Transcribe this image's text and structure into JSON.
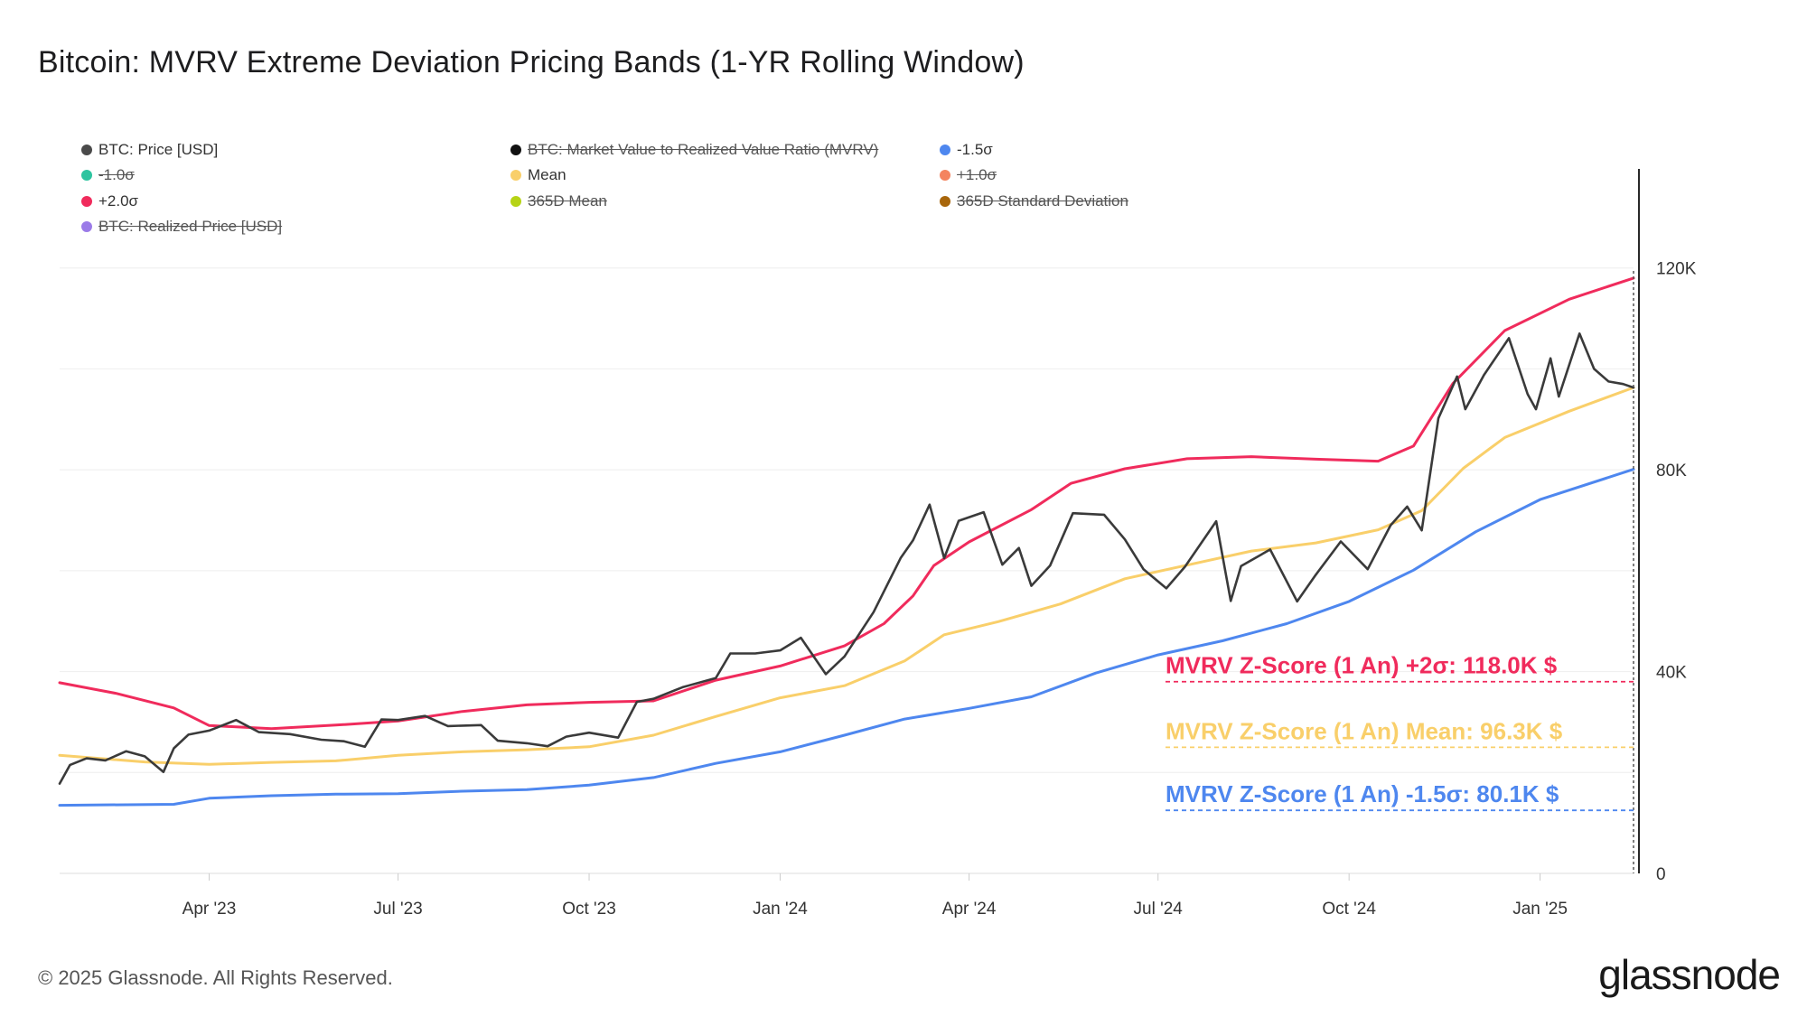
{
  "title": "Bitcoin: MVRV Extreme Deviation Pricing Bands (1-YR Rolling Window)",
  "legend": [
    {
      "label": "BTC: Price [USD]",
      "color": "#4a4a4a",
      "hidden": false
    },
    {
      "label": "BTC: Market Value to Realized Value Ratio (MVRV)",
      "color": "#111111",
      "hidden": true
    },
    {
      "label": "-1.5σ",
      "color": "#4e87ef",
      "hidden": false
    },
    {
      "label": "-1.0σ",
      "color": "#2ec4a0",
      "hidden": true
    },
    {
      "label": "Mean",
      "color": "#f9cf6a",
      "hidden": false
    },
    {
      "label": "+1.0σ",
      "color": "#f4845f",
      "hidden": true
    },
    {
      "label": "+2.0σ",
      "color": "#f02b5c",
      "hidden": false
    },
    {
      "label": "365D Mean",
      "color": "#b6d316",
      "hidden": true
    },
    {
      "label": "365D Standard Deviation",
      "color": "#a8660b",
      "hidden": true
    },
    {
      "label": "BTC: Realized Price [USD]",
      "color": "#9b7be8",
      "hidden": true
    }
  ],
  "annotations": [
    {
      "text": "MVRV Z-Score (1 An) +2σ: 118.0K $",
      "color": "#f02b5c",
      "value": 38000
    },
    {
      "text": "MVRV Z-Score (1 An)  Mean: 96.3K $",
      "color": "#f9cf6a",
      "value": 25000
    },
    {
      "text": "MVRV Z-Score (1 An)  -1.5σ: 80.1K $",
      "color": "#4e87ef",
      "value": 12500
    }
  ],
  "footer": "© 2025 Glassnode. All Rights Reserved.",
  "logo": "glassnode",
  "chart_data": {
    "type": "line",
    "title": "Bitcoin: MVRV Extreme Deviation Pricing Bands (1-YR Rolling Window)",
    "xlabel": "",
    "ylabel": "",
    "xlim": [
      "2023-01-19",
      "2025-02-15"
    ],
    "ylim": [
      0,
      140000
    ],
    "yticks": [
      0,
      40000,
      80000,
      120000
    ],
    "ytick_labels": [
      "0",
      "40K",
      "80K",
      "120K"
    ],
    "xticks": [
      "2023-04-01",
      "2023-07-01",
      "2023-10-01",
      "2024-01-01",
      "2024-04-01",
      "2024-07-01",
      "2024-10-01",
      "2025-01-01"
    ],
    "xtick_labels": [
      "Apr '23",
      "Jul '23",
      "Oct '23",
      "Jan '24",
      "Apr '24",
      "Jul '24",
      "Oct '24",
      "Jan '25"
    ],
    "y_axis_position": "right",
    "grid": "horizontal",
    "legend_position": "top-left",
    "series": [
      {
        "name": "BTC: Price [USD]",
        "color": "#3a3a3a",
        "points": [
          [
            "2023-01-19",
            17800
          ],
          [
            "2023-01-24",
            21500
          ],
          [
            "2023-02-01",
            22800
          ],
          [
            "2023-02-10",
            22400
          ],
          [
            "2023-02-20",
            24200
          ],
          [
            "2023-03-01",
            23200
          ],
          [
            "2023-03-10",
            20100
          ],
          [
            "2023-03-15",
            24800
          ],
          [
            "2023-03-22",
            27500
          ],
          [
            "2023-04-01",
            28300
          ],
          [
            "2023-04-14",
            30400
          ],
          [
            "2023-04-25",
            28000
          ],
          [
            "2023-05-10",
            27600
          ],
          [
            "2023-05-25",
            26500
          ],
          [
            "2023-06-05",
            26200
          ],
          [
            "2023-06-15",
            25100
          ],
          [
            "2023-06-23",
            30500
          ],
          [
            "2023-07-01",
            30400
          ],
          [
            "2023-07-14",
            31200
          ],
          [
            "2023-07-25",
            29200
          ],
          [
            "2023-08-10",
            29400
          ],
          [
            "2023-08-18",
            26300
          ],
          [
            "2023-09-01",
            25800
          ],
          [
            "2023-09-11",
            25200
          ],
          [
            "2023-09-20",
            27100
          ],
          [
            "2023-10-01",
            27900
          ],
          [
            "2023-10-15",
            26900
          ],
          [
            "2023-10-24",
            34000
          ],
          [
            "2023-11-01",
            34600
          ],
          [
            "2023-11-15",
            36900
          ],
          [
            "2023-12-01",
            38700
          ],
          [
            "2023-12-08",
            43600
          ],
          [
            "2023-12-20",
            43600
          ],
          [
            "2024-01-01",
            44200
          ],
          [
            "2024-01-11",
            46700
          ],
          [
            "2024-01-23",
            39500
          ],
          [
            "2024-02-01",
            43000
          ],
          [
            "2024-02-15",
            51800
          ],
          [
            "2024-02-28",
            62500
          ],
          [
            "2024-03-05",
            66000
          ],
          [
            "2024-03-13",
            73100
          ],
          [
            "2024-03-20",
            62500
          ],
          [
            "2024-03-27",
            69900
          ],
          [
            "2024-04-08",
            71600
          ],
          [
            "2024-04-17",
            61200
          ],
          [
            "2024-04-25",
            64500
          ],
          [
            "2024-05-01",
            57000
          ],
          [
            "2024-05-10",
            61000
          ],
          [
            "2024-05-21",
            71400
          ],
          [
            "2024-06-05",
            71100
          ],
          [
            "2024-06-15",
            66200
          ],
          [
            "2024-06-24",
            60300
          ],
          [
            "2024-07-05",
            56500
          ],
          [
            "2024-07-14",
            60800
          ],
          [
            "2024-07-29",
            69800
          ],
          [
            "2024-08-05",
            54000
          ],
          [
            "2024-08-10",
            60900
          ],
          [
            "2024-08-24",
            64200
          ],
          [
            "2024-09-06",
            53900
          ],
          [
            "2024-09-15",
            59200
          ],
          [
            "2024-09-27",
            65800
          ],
          [
            "2024-10-10",
            60300
          ],
          [
            "2024-10-21",
            69000
          ],
          [
            "2024-10-29",
            72700
          ],
          [
            "2024-11-05",
            68000
          ],
          [
            "2024-11-13",
            90200
          ],
          [
            "2024-11-22",
            98500
          ],
          [
            "2024-11-26",
            92000
          ],
          [
            "2024-12-05",
            98800
          ],
          [
            "2024-12-17",
            106100
          ],
          [
            "2024-12-26",
            95000
          ],
          [
            "2024-12-30",
            92000
          ],
          [
            "2025-01-06",
            102100
          ],
          [
            "2025-01-10",
            94500
          ],
          [
            "2025-01-20",
            107000
          ],
          [
            "2025-01-27",
            100000
          ],
          [
            "2025-02-03",
            97500
          ],
          [
            "2025-02-10",
            97000
          ],
          [
            "2025-02-15",
            96300
          ]
        ]
      },
      {
        "name": "+2.0σ",
        "color": "#f02b5c",
        "points": [
          [
            "2023-01-19",
            37800
          ],
          [
            "2023-02-15",
            35700
          ],
          [
            "2023-03-15",
            32800
          ],
          [
            "2023-04-01",
            29300
          ],
          [
            "2023-05-01",
            28700
          ],
          [
            "2023-06-01",
            29400
          ],
          [
            "2023-07-01",
            30200
          ],
          [
            "2023-08-01",
            32100
          ],
          [
            "2023-09-01",
            33400
          ],
          [
            "2023-10-01",
            33900
          ],
          [
            "2023-11-01",
            34200
          ],
          [
            "2023-12-01",
            38300
          ],
          [
            "2024-01-01",
            41100
          ],
          [
            "2024-02-01",
            45100
          ],
          [
            "2024-02-20",
            49500
          ],
          [
            "2024-03-05",
            55000
          ],
          [
            "2024-03-15",
            61000
          ],
          [
            "2024-04-01",
            65700
          ],
          [
            "2024-05-01",
            72100
          ],
          [
            "2024-05-20",
            77300
          ],
          [
            "2024-06-15",
            80200
          ],
          [
            "2024-07-15",
            82200
          ],
          [
            "2024-08-15",
            82600
          ],
          [
            "2024-09-15",
            82100
          ],
          [
            "2024-10-15",
            81700
          ],
          [
            "2024-11-01",
            84700
          ],
          [
            "2024-11-20",
            97100
          ],
          [
            "2024-12-15",
            107600
          ],
          [
            "2025-01-15",
            113800
          ],
          [
            "2025-02-15",
            118000
          ]
        ]
      },
      {
        "name": "Mean",
        "color": "#f9cf6a",
        "points": [
          [
            "2023-01-19",
            23400
          ],
          [
            "2023-03-01",
            22100
          ],
          [
            "2023-04-01",
            21600
          ],
          [
            "2023-05-01",
            22000
          ],
          [
            "2023-06-01",
            22300
          ],
          [
            "2023-07-01",
            23400
          ],
          [
            "2023-08-01",
            24100
          ],
          [
            "2023-09-01",
            24500
          ],
          [
            "2023-10-01",
            25100
          ],
          [
            "2023-11-01",
            27400
          ],
          [
            "2023-12-01",
            31100
          ],
          [
            "2024-01-01",
            34800
          ],
          [
            "2024-02-01",
            37200
          ],
          [
            "2024-03-01",
            42100
          ],
          [
            "2024-03-20",
            47300
          ],
          [
            "2024-04-15",
            49900
          ],
          [
            "2024-05-15",
            53400
          ],
          [
            "2024-06-15",
            58400
          ],
          [
            "2024-07-15",
            61100
          ],
          [
            "2024-08-15",
            63900
          ],
          [
            "2024-09-15",
            65500
          ],
          [
            "2024-10-15",
            68100
          ],
          [
            "2024-11-05",
            71900
          ],
          [
            "2024-11-25",
            80300
          ],
          [
            "2024-12-15",
            86400
          ],
          [
            "2025-01-15",
            91600
          ],
          [
            "2025-02-15",
            96300
          ]
        ]
      },
      {
        "name": "-1.5σ",
        "color": "#4e87ef",
        "points": [
          [
            "2023-01-19",
            13500
          ],
          [
            "2023-03-15",
            13700
          ],
          [
            "2023-04-01",
            14900
          ],
          [
            "2023-05-01",
            15400
          ],
          [
            "2023-06-01",
            15700
          ],
          [
            "2023-07-01",
            15800
          ],
          [
            "2023-08-01",
            16300
          ],
          [
            "2023-09-01",
            16600
          ],
          [
            "2023-10-01",
            17500
          ],
          [
            "2023-11-01",
            19000
          ],
          [
            "2023-12-01",
            21800
          ],
          [
            "2024-01-01",
            24100
          ],
          [
            "2024-02-01",
            27400
          ],
          [
            "2024-03-01",
            30600
          ],
          [
            "2024-04-01",
            32700
          ],
          [
            "2024-05-01",
            35000
          ],
          [
            "2024-06-01",
            39700
          ],
          [
            "2024-07-01",
            43300
          ],
          [
            "2024-08-01",
            46100
          ],
          [
            "2024-09-01",
            49500
          ],
          [
            "2024-10-01",
            53900
          ],
          [
            "2024-11-01",
            60100
          ],
          [
            "2024-12-01",
            67700
          ],
          [
            "2025-01-01",
            74100
          ],
          [
            "2025-02-15",
            80100
          ]
        ]
      }
    ]
  }
}
